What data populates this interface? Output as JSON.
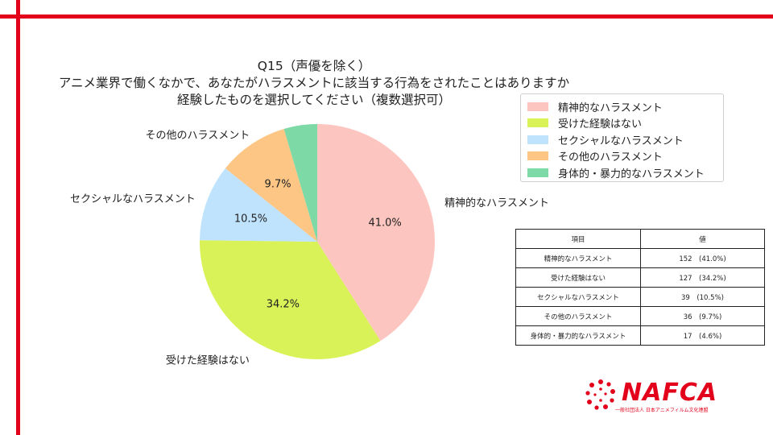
{
  "chart_data": {
    "type": "pie",
    "title": "Q15（声優を除く）",
    "subtitle_lines": [
      "アニメ業界で働くなかで、あなたがハラスメントに該当する行為をされたことはありますか",
      "経験したものを選択してください（複数選択可）"
    ],
    "categories": [
      "精神的なハラスメント",
      "受けた経験はない",
      "セクシャルなハラスメント",
      "その他のハラスメント",
      "身体的・暴力的なハラスメント"
    ],
    "values": [
      152,
      127,
      39,
      36,
      17
    ],
    "percent_labels": [
      "41.0%",
      "34.2%",
      "10.5%",
      "9.7%",
      ""
    ],
    "outside_labels": [
      "精神的なハラスメント",
      "受けた経験はない",
      "セクシャルなハラスメント",
      "その他のハラスメント",
      ""
    ],
    "colors": [
      "#fdc5bf",
      "#d8f257",
      "#bfe2fd",
      "#fdc685",
      "#7dd9a6"
    ],
    "legend_position": "upper-right"
  },
  "table": {
    "headers": [
      "項目",
      "値"
    ],
    "rows": [
      {
        "item": "精神的なハラスメント",
        "value": "152　(41.0%)"
      },
      {
        "item": "受けた経験はない",
        "value": "127　(34.2%)"
      },
      {
        "item": "セクシャルなハラスメント",
        "value": "39　(10.5%)"
      },
      {
        "item": "その他のハラスメント",
        "value": "36　(9.7%)"
      },
      {
        "item": "身体的・暴力的なハラスメント",
        "value": "17　(4.6%)"
      }
    ]
  },
  "logo": {
    "name": "NAFCA",
    "subtitle": "一般社団法人 日本アニメフィルム文化連盟"
  },
  "brand_color": "#e3001b"
}
